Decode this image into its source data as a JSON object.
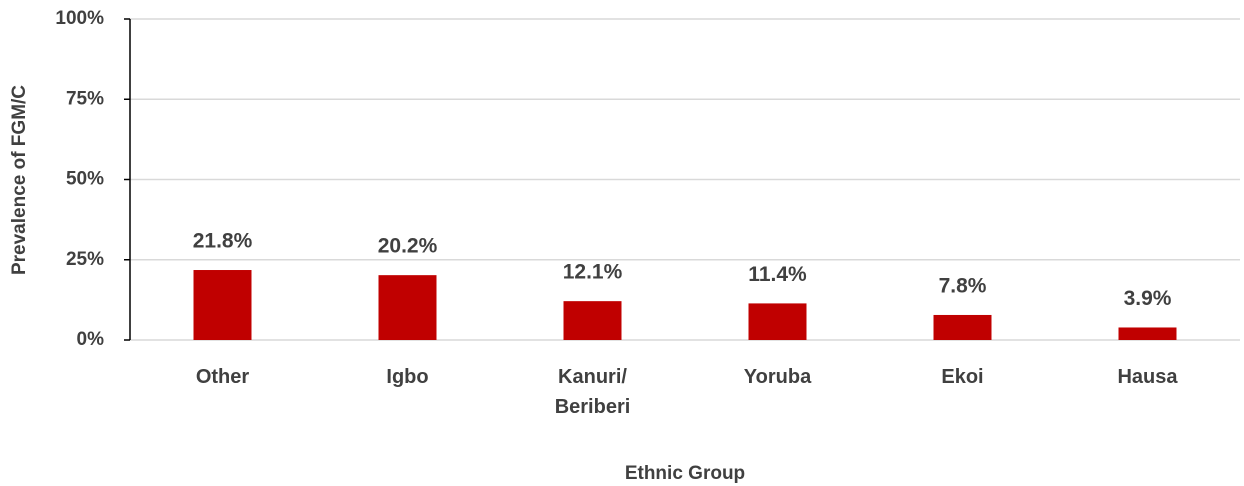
{
  "chart_data": {
    "type": "bar",
    "categories": [
      "Other",
      "Igbo",
      "Kanuri/ Beriberi",
      "Yoruba",
      "Ekoi",
      "Hausa"
    ],
    "values": [
      21.8,
      20.2,
      12.1,
      11.4,
      7.8,
      3.9
    ],
    "value_labels": [
      "21.8%",
      "20.2%",
      "12.1%",
      "11.4%",
      "7.8%",
      "3.9%"
    ],
    "color": "#c00000",
    "ylim": [
      0,
      100
    ],
    "yticks": [
      {
        "value": 0,
        "label": "0%"
      },
      {
        "value": 25,
        "label": "25%"
      },
      {
        "value": 50,
        "label": "50%"
      },
      {
        "value": 75,
        "label": "75%"
      },
      {
        "value": 100,
        "label": "100%"
      }
    ],
    "grid": true,
    "y_label": "Prevalence of FGM/C",
    "x_label": "Ethnic Group"
  }
}
